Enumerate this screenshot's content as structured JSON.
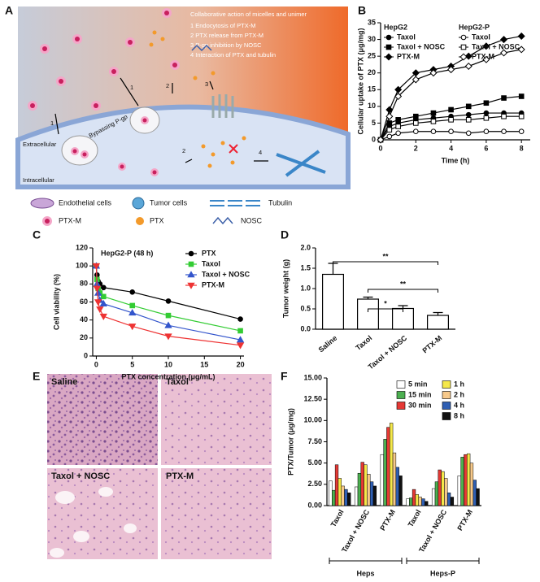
{
  "panel_labels": [
    "A",
    "B",
    "C",
    "D",
    "E",
    "F"
  ],
  "diagram": {
    "title": "Collaborative action of micelles and unimer",
    "steps": [
      "1 Endocytosis of PTX-M",
      "2 PTX release from PTX-M",
      "3 P-gp inhibition by NOSC",
      "4 Interaction of PTX and tubulin"
    ],
    "regions": [
      "Extracellular",
      "Intracellular"
    ],
    "pathway_label": "Bypassing P-gp",
    "step_markers": [
      "1",
      "1",
      "2",
      "2",
      "3",
      "4"
    ],
    "legend": [
      "Endothelial cells",
      "Tumor cells",
      "Tubulin",
      "PTX-M",
      "PTX",
      "NOSC"
    ]
  },
  "micrographs": {
    "labels": [
      "Saline",
      "Taxol",
      "Taxol + NOSC",
      "PTX-M"
    ]
  },
  "chart_data": [
    {
      "type": "line",
      "x_label": "Time (h)",
      "y_label": "Cellular uptake of PTX (μg/mg)",
      "x": [
        0,
        0.5,
        1,
        2,
        3,
        4,
        5,
        6,
        7,
        8
      ],
      "xlim": [
        0,
        8.5
      ],
      "ylim": [
        0,
        35
      ],
      "xticks": [
        0,
        2,
        4,
        6,
        8
      ],
      "yticks": [
        0,
        5,
        10,
        15,
        20,
        25,
        30,
        35
      ],
      "legend_groups": [
        "HepG2",
        "HepG2-P"
      ],
      "series": [
        {
          "name": "Taxol",
          "color": "#000000",
          "marker": "circle",
          "filled": true,
          "values": [
            0,
            4,
            5,
            6,
            6.5,
            7,
            7.5,
            8,
            8,
            8
          ]
        },
        {
          "name": "Taxol + NOSC",
          "color": "#000000",
          "marker": "square",
          "filled": true,
          "values": [
            0,
            5,
            6,
            7,
            8,
            9,
            10,
            11,
            12.5,
            13
          ]
        },
        {
          "name": "PTX-M",
          "color": "#000000",
          "marker": "diamond",
          "filled": true,
          "values": [
            0,
            9,
            15,
            20,
            21,
            22,
            25,
            28,
            30,
            31
          ]
        },
        {
          "name": "Taxol",
          "color": "#000000",
          "marker": "circle",
          "filled": false,
          "values": [
            0,
            1,
            2,
            2.5,
            2.5,
            2.5,
            2,
            2.5,
            2.5,
            2.5
          ]
        },
        {
          "name": "Taxol + NOSC",
          "color": "#000000",
          "marker": "square",
          "filled": false,
          "values": [
            0,
            3,
            4,
            5,
            5.5,
            6,
            6,
            6.5,
            7,
            7
          ]
        },
        {
          "name": "PTX-M",
          "color": "#000000",
          "marker": "diamond",
          "filled": false,
          "values": [
            0,
            7,
            13,
            18,
            20,
            21,
            22,
            24,
            26,
            27
          ]
        }
      ]
    },
    {
      "type": "line",
      "annotation": "HepG2-P (48 h)",
      "x_label": "PTX concentration (μg/mL)",
      "y_label": "Cell viability (%)",
      "x": [
        0,
        0.1,
        0.25,
        0.5,
        1,
        5,
        10,
        20
      ],
      "xlim": [
        -0.5,
        20.5
      ],
      "ylim": [
        0,
        120
      ],
      "xticks": [
        0,
        5,
        10,
        15,
        20
      ],
      "yticks": [
        0,
        20,
        40,
        60,
        80,
        100,
        120
      ],
      "legend": "upper right",
      "series": [
        {
          "name": "PTX",
          "color": "#000000",
          "marker": "circle",
          "filled": true,
          "values": [
            100,
            90,
            83,
            80,
            76,
            71,
            61,
            41
          ]
        },
        {
          "name": "Taxol",
          "color": "#33cc33",
          "marker": "square",
          "filled": true,
          "values": [
            100,
            85,
            75,
            70,
            66,
            56,
            45,
            28
          ]
        },
        {
          "name": "Taxol + NOSC",
          "color": "#3355cc",
          "marker": "triangle",
          "filled": true,
          "values": [
            100,
            80,
            70,
            62,
            58,
            48,
            34,
            18
          ]
        },
        {
          "name": "PTX-M",
          "color": "#ee3333",
          "marker": "triangle-down",
          "filled": true,
          "values": [
            100,
            75,
            60,
            52,
            44,
            33,
            22,
            12
          ]
        }
      ]
    },
    {
      "type": "bar",
      "y_label": "Tumor weight (g)",
      "categories": [
        "Saline",
        "Taxol",
        "Taxol + NOSC",
        "PTX-M"
      ],
      "values": [
        1.35,
        0.74,
        0.51,
        0.34
      ],
      "errors": [
        0.27,
        0.05,
        0.07,
        0.07
      ],
      "color": "#ffffff",
      "ylim": [
        0,
        2
      ],
      "yticks": [
        {
          "value": 0,
          "label": "0.0"
        },
        0.5,
        {
          "value": 1,
          "label": "1.0"
        },
        1.5,
        {
          "value": 2,
          "label": "2.0"
        }
      ],
      "significance": [
        {
          "label": "**",
          "between": [
            "Saline",
            "PTX-M"
          ]
        },
        {
          "label": "**",
          "between": [
            "Taxol",
            "PTX-M"
          ]
        },
        {
          "label": "*",
          "between": [
            "Taxol",
            "Taxol + NOSC"
          ]
        }
      ]
    },
    {
      "type": "grouped_bar",
      "y_label": "PTX/Tumor (μg/mg)",
      "categories": [
        "Taxol",
        "Taxol + NOSC",
        "PTX-M",
        "Taxol",
        "Taxol + NOSC",
        "PTX-M"
      ],
      "groups": [
        "Heps",
        "Heps-P"
      ],
      "ylim": [
        0,
        15
      ],
      "yticks": [
        {
          "value": 0,
          "label": "0.00"
        },
        {
          "value": 2.5,
          "label": "2.50"
        },
        {
          "value": 5,
          "label": "5.00"
        },
        {
          "value": 7.5,
          "label": "7.50"
        },
        {
          "value": 10,
          "label": "10.00"
        },
        {
          "value": 12.5,
          "label": "12.50"
        },
        {
          "value": 15,
          "label": "15.00"
        }
      ],
      "legend": "upper right",
      "series": [
        {
          "name": "5 min",
          "color": "#ffffff",
          "values": [
            2.9,
            2.2,
            6.0,
            0.8,
            2.0,
            3.5
          ]
        },
        {
          "name": "15 min",
          "color": "#4caf50",
          "values": [
            1.8,
            3.8,
            7.8,
            0.9,
            2.8,
            5.7
          ]
        },
        {
          "name": "30 min",
          "color": "#e53935",
          "values": [
            4.8,
            5.1,
            9.2,
            1.9,
            4.2,
            6.0
          ]
        },
        {
          "name": "1 h",
          "color": "#f5e84a",
          "values": [
            3.2,
            4.8,
            9.7,
            1.3,
            4.0,
            6.1
          ]
        },
        {
          "name": "2 h",
          "color": "#f7c98a",
          "values": [
            2.3,
            3.7,
            6.2,
            1.0,
            3.2,
            5.0
          ]
        },
        {
          "name": "4 h",
          "color": "#2f5fb3",
          "values": [
            1.9,
            2.8,
            4.5,
            0.8,
            1.5,
            3.0
          ]
        },
        {
          "name": "8 h",
          "color": "#111111",
          "values": [
            1.5,
            2.3,
            3.5,
            0.5,
            1.0,
            2.0
          ]
        }
      ]
    }
  ]
}
